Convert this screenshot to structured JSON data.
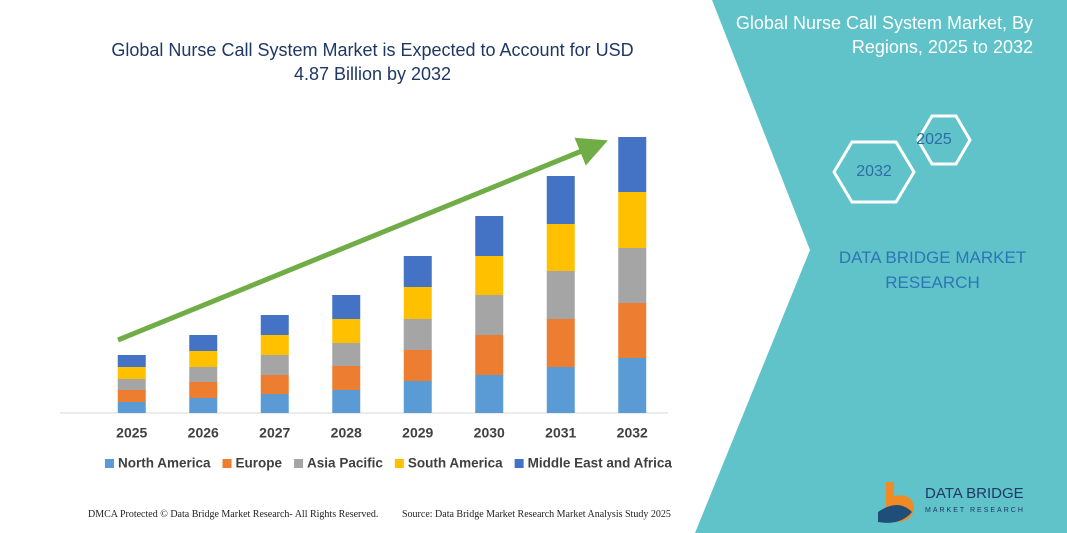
{
  "chart_data": {
    "type": "stacked-bar",
    "title": "Global Nurse Call System Market is Expected to Account for USD 4.87 Billion by 2032",
    "categories": [
      "2025",
      "2026",
      "2027",
      "2028",
      "2029",
      "2030",
      "2031",
      "2032"
    ],
    "series": [
      {
        "name": "North America",
        "color": "#5b9bd5",
        "values": [
          11,
          15,
          19,
          23,
          32,
          38,
          46,
          55
        ]
      },
      {
        "name": "Europe",
        "color": "#ed7d31",
        "values": [
          12,
          16,
          19,
          24,
          31,
          40,
          48,
          55
        ]
      },
      {
        "name": "Asia Pacific",
        "color": "#a5a5a5",
        "values": [
          11,
          15,
          20,
          23,
          31,
          40,
          48,
          55
        ]
      },
      {
        "name": "South America",
        "color": "#ffc000",
        "values": [
          12,
          16,
          20,
          24,
          32,
          39,
          47,
          56
        ]
      },
      {
        "name": "Middle East and Africa",
        "color": "#4472c4",
        "values": [
          12,
          16,
          20,
          24,
          31,
          40,
          48,
          55
        ]
      }
    ],
    "legend": "bottom"
  },
  "panel": {
    "title": "Global Nurse Call System Market, By Regions, 2025 to 2032",
    "hexagons": [
      "2025",
      "2032"
    ],
    "brand": "DATA BRIDGE MARKET RESEARCH"
  },
  "footer": {
    "left": "DMCA Protected © Data Bridge Market Research-  All Rights Reserved.",
    "right": "Source: Data Bridge Market Research  Market Analysis Study 2025"
  },
  "logo": {
    "name": "DATA BRIDGE",
    "tagline": "MARKET RESEARCH"
  }
}
